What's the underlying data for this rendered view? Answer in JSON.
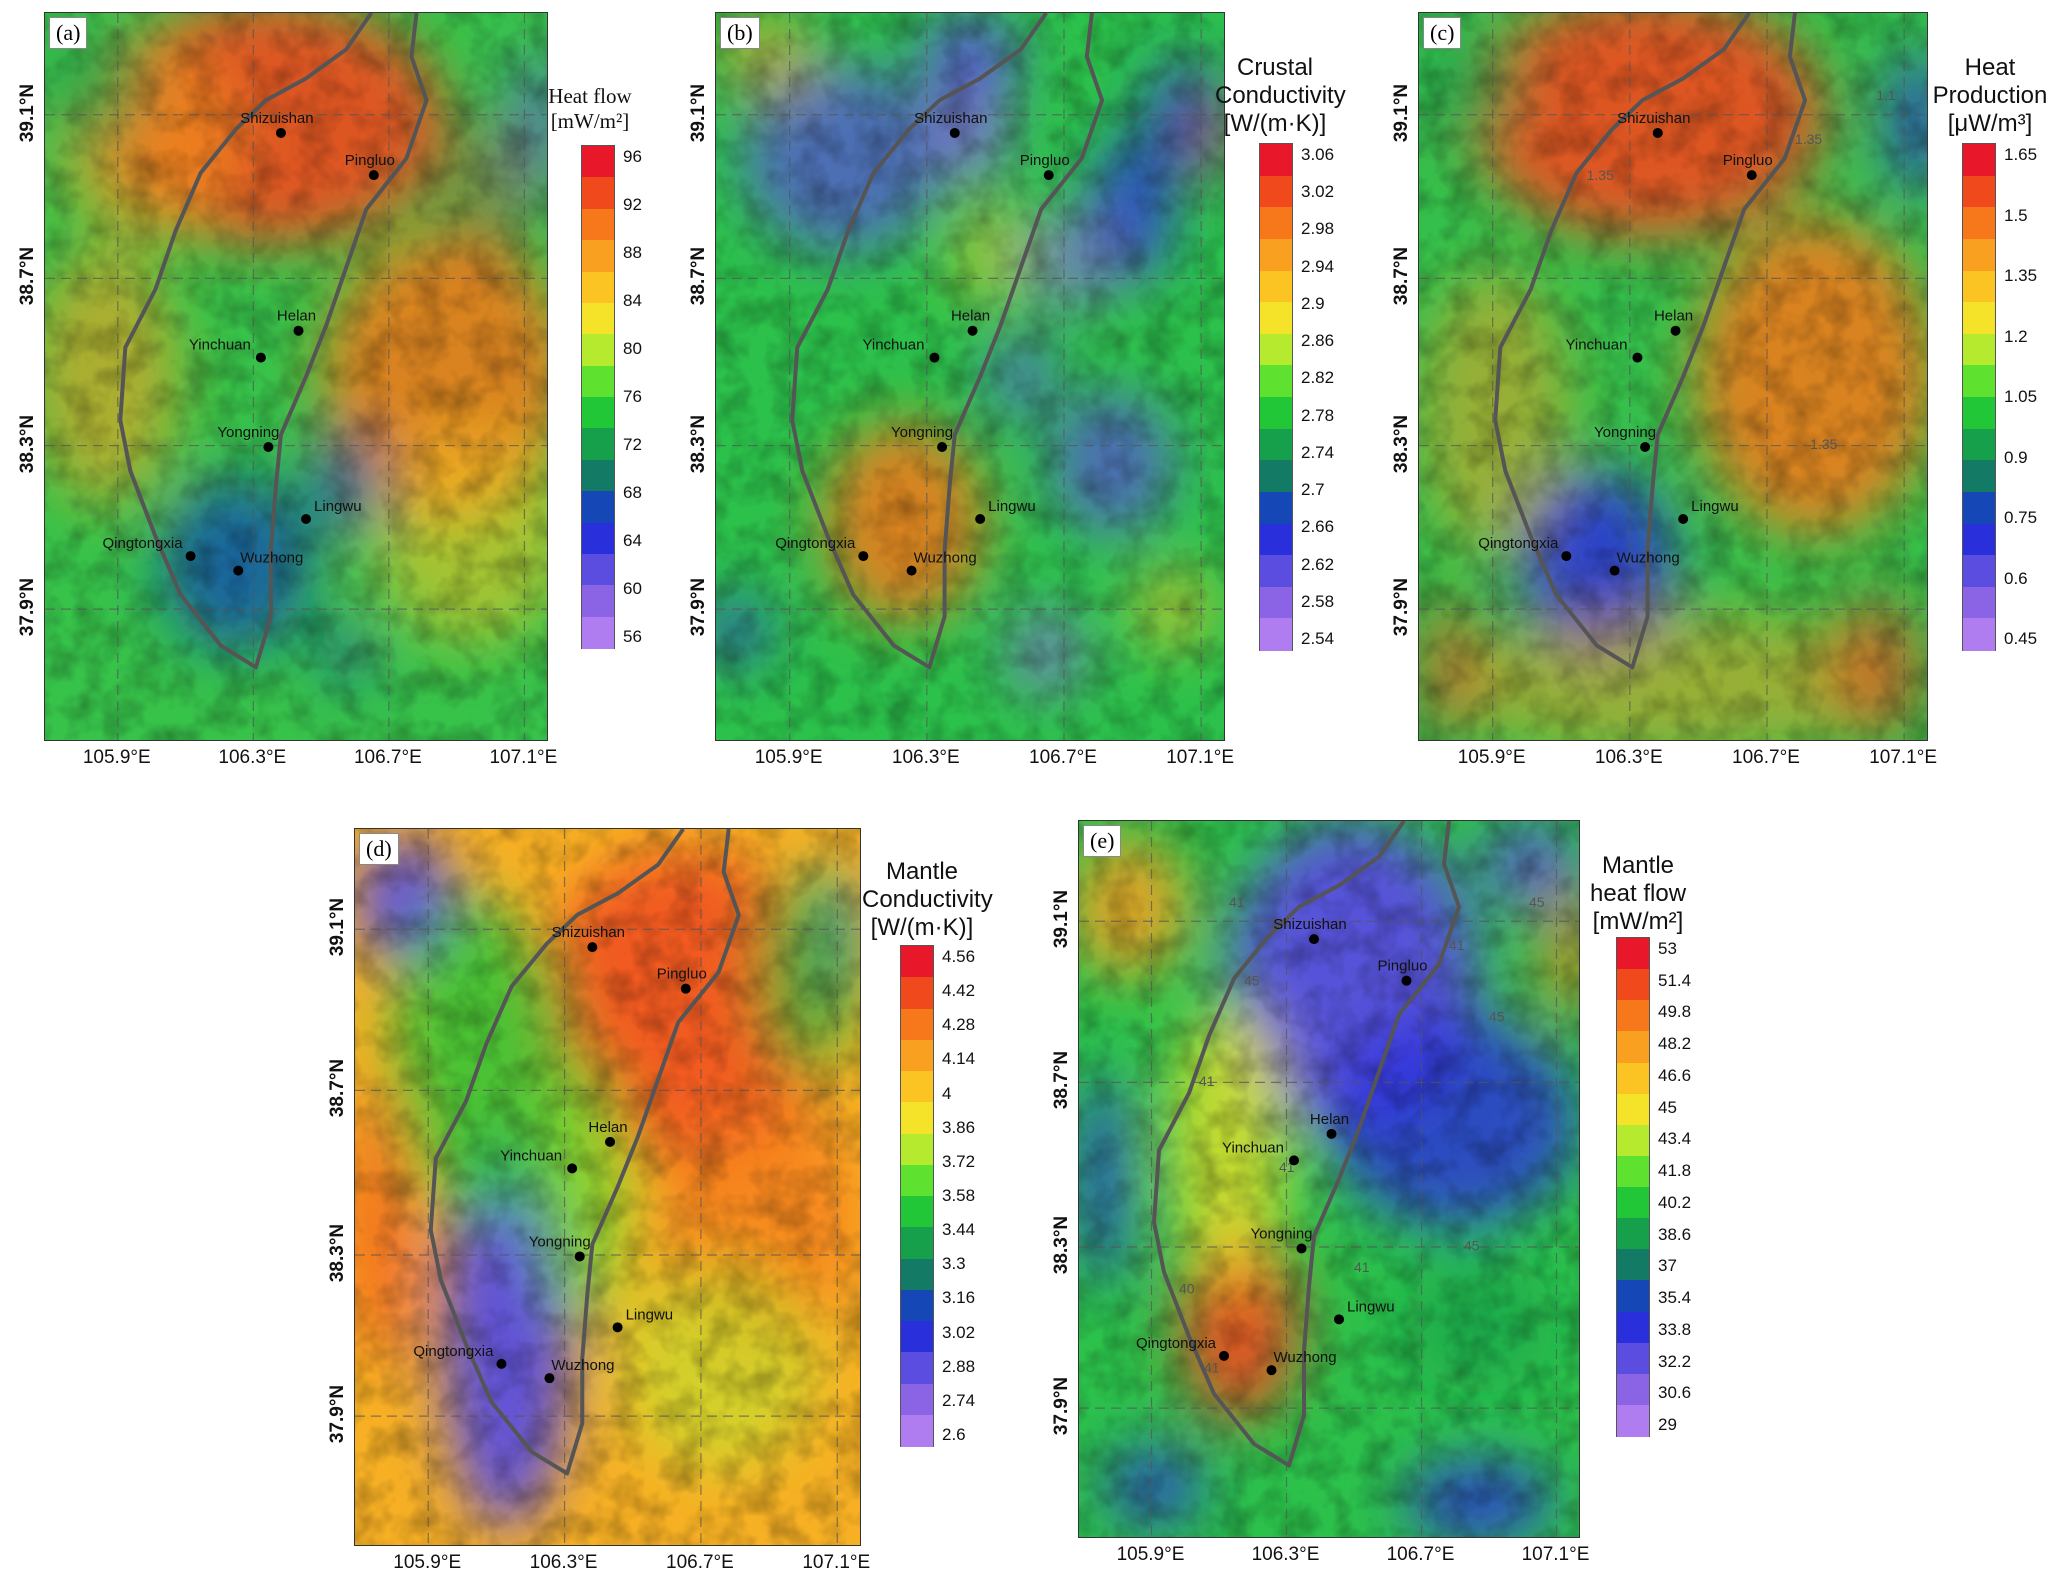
{
  "panels": [
    {
      "tag": "(a)",
      "title_lines": [
        "Heat flow",
        "[mW/m²]"
      ],
      "title_style": "serif",
      "ticks": [
        "96",
        "92",
        "88",
        "84",
        "80",
        "76",
        "72",
        "68",
        "64",
        "60",
        "56"
      ],
      "contour_labels": [],
      "palette": "hot"
    },
    {
      "tag": "(b)",
      "title_lines": [
        "Crustal",
        "Conductivity",
        "[W/(m·K)]"
      ],
      "title_style": "sans",
      "ticks": [
        "3.06",
        "3.02",
        "2.98",
        "2.94",
        "2.9",
        "2.86",
        "2.82",
        "2.78",
        "2.74",
        "2.7",
        "2.66",
        "2.62",
        "2.58",
        "2.54"
      ],
      "contour_labels": [],
      "palette": "cool"
    },
    {
      "tag": "(c)",
      "title_lines": [
        "Heat",
        "Production",
        "[μW/m³]"
      ],
      "title_style": "sans",
      "ticks": [
        "1.65",
        "1.5",
        "1.35",
        "1.2",
        "1.05",
        "0.9",
        "0.75",
        "0.6",
        "0.45"
      ],
      "contour_labels": [
        "1.35",
        "1.35",
        "1.35",
        "1.1"
      ],
      "palette": "hot"
    },
    {
      "tag": "(d)",
      "title_lines": [
        "Mantle",
        "Conductivity",
        "[W/(m·K)]"
      ],
      "title_style": "sans",
      "ticks": [
        "4.56",
        "4.42",
        "4.28",
        "4.14",
        "4",
        "3.86",
        "3.72",
        "3.58",
        "3.44",
        "3.3",
        "3.16",
        "3.02",
        "2.88",
        "2.74",
        "2.6"
      ],
      "contour_labels": [],
      "palette": "mantle"
    },
    {
      "tag": "(e)",
      "title_lines": [
        "Mantle",
        "heat flow",
        "[mW/m²]"
      ],
      "title_style": "sans",
      "ticks": [
        "53",
        "51.4",
        "49.8",
        "48.2",
        "46.6",
        "45",
        "43.4",
        "41.8",
        "40.2",
        "38.6",
        "37",
        "35.4",
        "33.8",
        "32.2",
        "30.6",
        "29"
      ],
      "contour_labels": [
        "45",
        "41",
        "45",
        "45",
        "41",
        "37",
        "41",
        "41",
        "40",
        "45",
        "41",
        "41"
      ],
      "palette": "cold"
    }
  ],
  "lat_labels": [
    "39.1°N",
    "38.7°N",
    "38.3°N",
    "37.9°N"
  ],
  "lon_labels": [
    "105.9°E",
    "106.3°E",
    "106.7°E",
    "107.1°E"
  ],
  "cities": [
    "Shizuishan",
    "Pingluo",
    "Helan",
    "Yinchuan",
    "Yongning",
    "Lingwu",
    "Qingtongxia",
    "Wuzhong"
  ],
  "colors": {
    "colorbar": [
      "#e8182a",
      "#f04a1c",
      "#f6781a",
      "#f9a020",
      "#fbc423",
      "#f5e32a",
      "#b6ea2e",
      "#5ee22f",
      "#22c738",
      "#17a04b",
      "#137a66",
      "#1547b6",
      "#2a2fdc",
      "#5a4ddf",
      "#8a64e4",
      "#b07df0"
    ],
    "boundary": "#555555",
    "grid": "#555555"
  }
}
